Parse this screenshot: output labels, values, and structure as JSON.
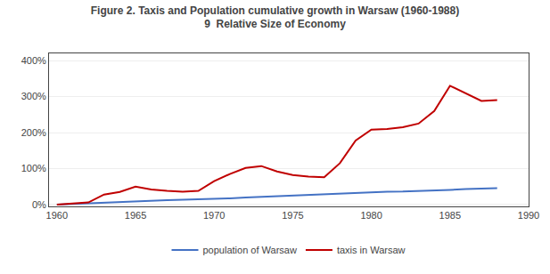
{
  "chart_data": {
    "type": "line",
    "title": "Figure 2. Taxis and Population cumulative growth in Warsaw (1960-1988)",
    "subtitle": "9  Relative Size of Economy",
    "x": [
      1960,
      1961,
      1962,
      1963,
      1964,
      1965,
      1966,
      1967,
      1968,
      1969,
      1970,
      1971,
      1972,
      1973,
      1974,
      1975,
      1976,
      1977,
      1978,
      1979,
      1980,
      1981,
      1982,
      1983,
      1984,
      1985,
      1986,
      1987,
      1988
    ],
    "series": [
      {
        "name": "population of Warsaw",
        "color": "#4472C4",
        "values": [
          0.0,
          0.02,
          0.04,
          0.06,
          0.08,
          0.1,
          0.115,
          0.125,
          0.135,
          0.145,
          0.155,
          0.175,
          0.195,
          0.215,
          0.235,
          0.255,
          0.275,
          0.295,
          0.315,
          0.335,
          0.355,
          0.36,
          0.365,
          0.375,
          0.39,
          0.41,
          0.43,
          0.445,
          0.455
        ]
      },
      {
        "name": "taxis in Warsaw",
        "color": "#C00000",
        "values": [
          0.0,
          0.03,
          0.06,
          0.28,
          0.35,
          0.5,
          0.42,
          0.38,
          0.36,
          0.38,
          0.65,
          0.85,
          1.02,
          1.07,
          0.92,
          0.82,
          0.78,
          0.76,
          1.15,
          1.78,
          2.08,
          2.1,
          2.15,
          2.25,
          2.6,
          3.3,
          3.1,
          2.88,
          2.9
        ]
      }
    ],
    "xlim": [
      1959.5,
      1990
    ],
    "xticks": [
      1960,
      1965,
      1970,
      1975,
      1980,
      1985,
      1990
    ],
    "ylim": [
      -0.05,
      4.2
    ],
    "yticks": [
      {
        "value": 0,
        "label": "0%"
      },
      {
        "value": 1,
        "label": "100%"
      },
      {
        "value": 2,
        "label": "200%"
      },
      {
        "value": 3,
        "label": "300%"
      },
      {
        "value": 4,
        "label": "400%"
      }
    ],
    "grid": true,
    "legend": "bottom"
  }
}
